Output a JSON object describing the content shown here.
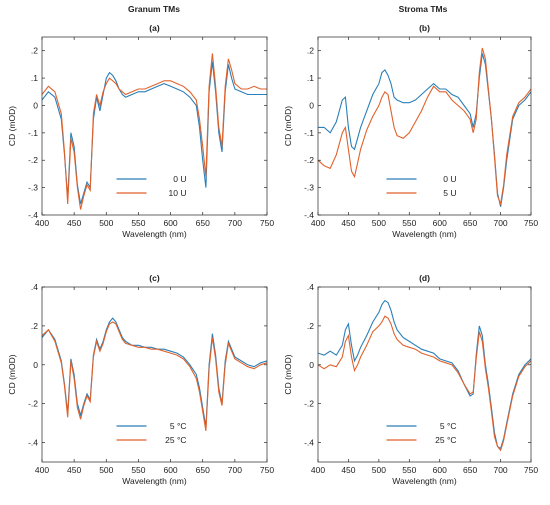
{
  "column_titles": [
    "Granum TMs",
    "Stroma TMs"
  ],
  "colors": {
    "blue": "#2a7fb8",
    "orange": "#e0622c",
    "axis": "#262626"
  },
  "chart_data": [
    {
      "type": "line",
      "panel": "(a)",
      "xlabel": "Wavelength (nm)",
      "ylabel": "CD (mOD)",
      "xlim": [
        400,
        750
      ],
      "ylim": [
        -0.4,
        0.25
      ],
      "xticks": [
        400,
        450,
        500,
        550,
        600,
        650,
        700,
        750
      ],
      "yticks": [
        -0.4,
        -0.3,
        -0.2,
        -0.1,
        0,
        0.1,
        0.2
      ],
      "legend_position": "bottom-center",
      "series": [
        {
          "name": "0 U",
          "color": "#2a7fb8",
          "x": [
            400,
            410,
            420,
            430,
            435,
            440,
            445,
            450,
            455,
            460,
            465,
            470,
            475,
            480,
            485,
            490,
            495,
            500,
            505,
            510,
            515,
            520,
            525,
            530,
            540,
            550,
            560,
            570,
            580,
            590,
            600,
            610,
            620,
            630,
            640,
            645,
            650,
            655,
            660,
            665,
            670,
            675,
            680,
            685,
            690,
            695,
            700,
            710,
            720,
            730,
            740,
            750
          ],
          "y": [
            0.02,
            0.05,
            0.03,
            -0.05,
            -0.18,
            -0.34,
            -0.1,
            -0.15,
            -0.29,
            -0.36,
            -0.32,
            -0.28,
            -0.3,
            -0.05,
            0.03,
            -0.02,
            0.04,
            0.1,
            0.12,
            0.11,
            0.09,
            0.06,
            0.04,
            0.03,
            0.04,
            0.05,
            0.05,
            0.06,
            0.07,
            0.08,
            0.07,
            0.06,
            0.05,
            0.03,
            0.0,
            -0.08,
            -0.2,
            -0.3,
            0.05,
            0.16,
            0.05,
            -0.1,
            -0.17,
            0.05,
            0.15,
            0.1,
            0.06,
            0.05,
            0.04,
            0.04,
            0.04,
            0.04
          ]
        },
        {
          "name": "10 U",
          "color": "#e0622c",
          "x": [
            400,
            410,
            420,
            430,
            435,
            440,
            445,
            450,
            455,
            460,
            465,
            470,
            475,
            480,
            485,
            490,
            495,
            500,
            505,
            510,
            515,
            520,
            525,
            530,
            540,
            550,
            560,
            570,
            580,
            590,
            600,
            610,
            620,
            630,
            640,
            645,
            650,
            655,
            660,
            665,
            670,
            675,
            680,
            685,
            690,
            695,
            700,
            710,
            720,
            730,
            740,
            750
          ],
          "y": [
            0.04,
            0.07,
            0.05,
            -0.03,
            -0.17,
            -0.36,
            -0.12,
            -0.17,
            -0.3,
            -0.38,
            -0.33,
            -0.29,
            -0.31,
            -0.03,
            0.04,
            0.0,
            0.05,
            0.08,
            0.1,
            0.09,
            0.08,
            0.06,
            0.05,
            0.04,
            0.05,
            0.06,
            0.06,
            0.07,
            0.08,
            0.09,
            0.09,
            0.08,
            0.07,
            0.05,
            0.02,
            -0.05,
            -0.15,
            -0.26,
            0.07,
            0.19,
            0.07,
            -0.08,
            -0.15,
            0.07,
            0.17,
            0.13,
            0.08,
            0.06,
            0.06,
            0.07,
            0.06,
            0.06
          ]
        }
      ]
    },
    {
      "type": "line",
      "panel": "(b)",
      "xlabel": "Wavelength (nm)",
      "ylabel": "CD (mOD)",
      "xlim": [
        400,
        750
      ],
      "ylim": [
        -0.4,
        0.25
      ],
      "xticks": [
        400,
        450,
        500,
        550,
        600,
        650,
        700,
        750
      ],
      "yticks": [
        -0.4,
        -0.3,
        -0.2,
        -0.1,
        0,
        0.1,
        0.2
      ],
      "legend_position": "bottom-center",
      "series": [
        {
          "name": "0 U",
          "color": "#2a7fb8",
          "x": [
            400,
            410,
            420,
            430,
            440,
            445,
            450,
            455,
            460,
            465,
            470,
            480,
            490,
            500,
            505,
            510,
            515,
            520,
            525,
            530,
            540,
            550,
            560,
            570,
            580,
            590,
            600,
            610,
            620,
            630,
            640,
            650,
            655,
            660,
            665,
            670,
            675,
            680,
            685,
            690,
            695,
            700,
            705,
            710,
            720,
            730,
            740,
            750
          ],
          "y": [
            -0.08,
            -0.08,
            -0.1,
            -0.06,
            0.02,
            0.03,
            -0.08,
            -0.15,
            -0.16,
            -0.12,
            -0.08,
            -0.02,
            0.04,
            0.08,
            0.12,
            0.13,
            0.11,
            0.08,
            0.03,
            0.02,
            0.01,
            0.01,
            0.02,
            0.04,
            0.06,
            0.08,
            0.06,
            0.06,
            0.04,
            0.03,
            0.0,
            -0.03,
            -0.08,
            -0.03,
            0.1,
            0.19,
            0.15,
            0.05,
            -0.05,
            -0.18,
            -0.32,
            -0.37,
            -0.3,
            -0.2,
            -0.05,
            0.0,
            0.02,
            0.05
          ]
        },
        {
          "name": "5 U",
          "color": "#e0622c",
          "x": [
            400,
            410,
            420,
            430,
            440,
            445,
            450,
            455,
            460,
            465,
            470,
            480,
            490,
            500,
            505,
            510,
            515,
            520,
            525,
            530,
            540,
            550,
            560,
            570,
            580,
            590,
            600,
            610,
            620,
            630,
            640,
            650,
            655,
            660,
            665,
            670,
            675,
            680,
            685,
            690,
            695,
            700,
            705,
            710,
            720,
            730,
            740,
            750
          ],
          "y": [
            -0.2,
            -0.22,
            -0.23,
            -0.18,
            -0.1,
            -0.08,
            -0.16,
            -0.24,
            -0.26,
            -0.21,
            -0.16,
            -0.09,
            -0.04,
            0.0,
            0.03,
            0.05,
            0.04,
            -0.02,
            -0.08,
            -0.11,
            -0.12,
            -0.1,
            -0.06,
            -0.02,
            0.03,
            0.07,
            0.05,
            0.05,
            0.02,
            0.0,
            -0.02,
            -0.05,
            -0.1,
            -0.05,
            0.12,
            0.21,
            0.17,
            0.06,
            -0.05,
            -0.19,
            -0.33,
            -0.36,
            -0.29,
            -0.18,
            -0.04,
            0.01,
            0.03,
            0.06
          ]
        }
      ]
    },
    {
      "type": "line",
      "panel": "(c)",
      "xlabel": "Wavelength (nm)",
      "ylabel": "CD (mOD)",
      "xlim": [
        400,
        750
      ],
      "ylim": [
        -0.5,
        0.4
      ],
      "xticks": [
        400,
        450,
        500,
        550,
        600,
        650,
        700,
        750
      ],
      "yticks": [
        -0.4,
        -0.2,
        0,
        0.2,
        0.4
      ],
      "legend_position": "bottom-center",
      "series": [
        {
          "name": "5 °C",
          "color": "#2a7fb8",
          "x": [
            400,
            410,
            420,
            430,
            435,
            440,
            445,
            450,
            455,
            460,
            465,
            470,
            475,
            480,
            485,
            490,
            495,
            500,
            505,
            510,
            515,
            520,
            525,
            530,
            540,
            550,
            560,
            570,
            580,
            590,
            600,
            610,
            620,
            630,
            640,
            645,
            650,
            655,
            660,
            665,
            670,
            675,
            680,
            685,
            690,
            700,
            710,
            720,
            730,
            740,
            750
          ],
          "y": [
            0.14,
            0.18,
            0.13,
            0.02,
            -0.1,
            -0.25,
            0.03,
            -0.05,
            -0.2,
            -0.26,
            -0.2,
            -0.15,
            -0.18,
            0.05,
            0.13,
            0.08,
            0.12,
            0.18,
            0.22,
            0.24,
            0.22,
            0.18,
            0.14,
            0.12,
            0.1,
            0.1,
            0.09,
            0.09,
            0.08,
            0.08,
            0.07,
            0.06,
            0.04,
            0.0,
            -0.05,
            -0.12,
            -0.22,
            -0.32,
            0.0,
            0.16,
            0.05,
            -0.12,
            -0.2,
            0.02,
            0.12,
            0.04,
            0.02,
            0.0,
            -0.01,
            0.01,
            0.02
          ]
        },
        {
          "name": "25 °C",
          "color": "#e0622c",
          "x": [
            400,
            410,
            420,
            430,
            435,
            440,
            445,
            450,
            455,
            460,
            465,
            470,
            475,
            480,
            485,
            490,
            495,
            500,
            505,
            510,
            515,
            520,
            525,
            530,
            540,
            550,
            560,
            570,
            580,
            590,
            600,
            610,
            620,
            630,
            640,
            645,
            650,
            655,
            660,
            665,
            670,
            675,
            680,
            685,
            690,
            700,
            710,
            720,
            730,
            740,
            750
          ],
          "y": [
            0.15,
            0.18,
            0.12,
            0.01,
            -0.11,
            -0.27,
            0.02,
            -0.07,
            -0.22,
            -0.28,
            -0.21,
            -0.16,
            -0.19,
            0.04,
            0.12,
            0.07,
            0.11,
            0.17,
            0.21,
            0.22,
            0.21,
            0.17,
            0.13,
            0.11,
            0.1,
            0.09,
            0.09,
            0.08,
            0.08,
            0.07,
            0.06,
            0.05,
            0.03,
            -0.01,
            -0.07,
            -0.14,
            -0.24,
            -0.34,
            -0.02,
            0.14,
            0.03,
            -0.14,
            -0.21,
            0.0,
            0.11,
            0.03,
            0.01,
            -0.01,
            -0.02,
            0.0,
            0.01
          ]
        }
      ]
    },
    {
      "type": "line",
      "panel": "(d)",
      "xlabel": "Wavelength (nm)",
      "ylabel": "CD (mOD)",
      "xlim": [
        400,
        750
      ],
      "ylim": [
        -0.5,
        0.4
      ],
      "xticks": [
        400,
        450,
        500,
        550,
        600,
        650,
        700,
        750
      ],
      "yticks": [
        -0.4,
        -0.2,
        0,
        0.2,
        0.4
      ],
      "legend_position": "bottom-center",
      "series": [
        {
          "name": "5 °C",
          "color": "#2a7fb8",
          "x": [
            400,
            410,
            420,
            430,
            440,
            445,
            450,
            455,
            460,
            465,
            470,
            480,
            490,
            500,
            505,
            510,
            515,
            520,
            525,
            530,
            540,
            550,
            560,
            570,
            580,
            590,
            600,
            610,
            620,
            630,
            640,
            650,
            655,
            660,
            665,
            670,
            675,
            680,
            685,
            690,
            695,
            700,
            705,
            710,
            720,
            730,
            740,
            750
          ],
          "y": [
            0.06,
            0.05,
            0.07,
            0.05,
            0.1,
            0.18,
            0.21,
            0.1,
            0.02,
            0.05,
            0.09,
            0.15,
            0.22,
            0.27,
            0.31,
            0.33,
            0.32,
            0.28,
            0.22,
            0.18,
            0.14,
            0.12,
            0.1,
            0.08,
            0.07,
            0.06,
            0.03,
            0.02,
            0.01,
            -0.03,
            -0.1,
            -0.16,
            -0.15,
            0.05,
            0.2,
            0.15,
            0.0,
            -0.1,
            -0.22,
            -0.35,
            -0.42,
            -0.43,
            -0.38,
            -0.3,
            -0.15,
            -0.05,
            0.0,
            0.03
          ]
        },
        {
          "name": "25 °C",
          "color": "#e0622c",
          "x": [
            400,
            410,
            420,
            430,
            440,
            445,
            450,
            455,
            460,
            465,
            470,
            480,
            490,
            500,
            505,
            510,
            515,
            520,
            525,
            530,
            540,
            550,
            560,
            570,
            580,
            590,
            600,
            610,
            620,
            630,
            640,
            650,
            655,
            660,
            665,
            670,
            675,
            680,
            685,
            690,
            695,
            700,
            705,
            710,
            720,
            730,
            740,
            750
          ],
          "y": [
            0.0,
            -0.02,
            0.0,
            -0.01,
            0.04,
            0.12,
            0.15,
            0.04,
            -0.03,
            0.0,
            0.04,
            0.1,
            0.17,
            0.2,
            0.22,
            0.25,
            0.24,
            0.21,
            0.16,
            0.13,
            0.1,
            0.09,
            0.08,
            0.06,
            0.05,
            0.04,
            0.02,
            0.01,
            0.0,
            -0.04,
            -0.1,
            -0.15,
            -0.14,
            0.03,
            0.17,
            0.12,
            -0.02,
            -0.12,
            -0.24,
            -0.37,
            -0.42,
            -0.44,
            -0.39,
            -0.31,
            -0.16,
            -0.06,
            -0.01,
            0.02
          ]
        }
      ]
    }
  ]
}
